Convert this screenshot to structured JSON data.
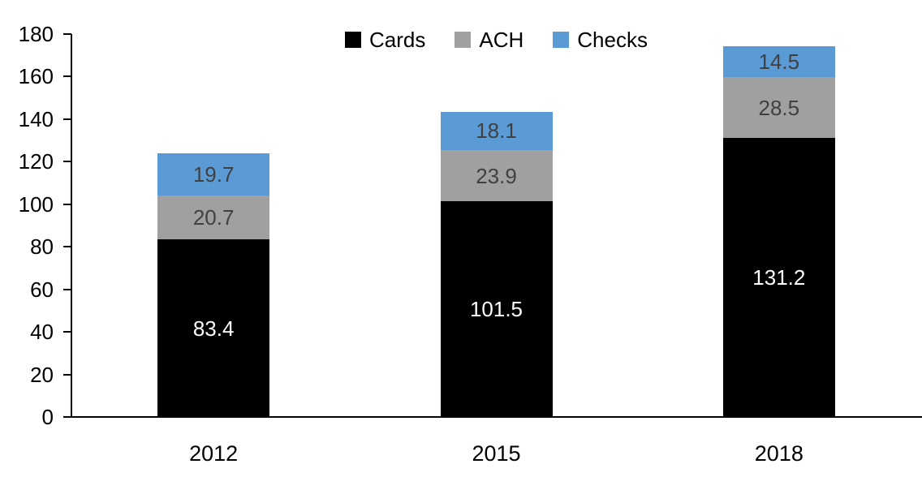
{
  "chart_data": {
    "type": "bar",
    "stacked": true,
    "title": "",
    "xlabel": "",
    "ylabel": "",
    "categories": [
      "2012",
      "2015",
      "2018"
    ],
    "series": [
      {
        "name": "Cards",
        "color": "#000000",
        "label_color": "#ffffff",
        "values": [
          83.4,
          101.5,
          131.2
        ]
      },
      {
        "name": "ACH",
        "color": "#a0a0a0",
        "label_color": "#404040",
        "values": [
          20.7,
          23.9,
          28.5
        ]
      },
      {
        "name": "Checks",
        "color": "#5b9bd5",
        "label_color": "#404040",
        "values": [
          19.7,
          18.1,
          14.5
        ]
      }
    ],
    "totals": [
      123.8,
      143.5,
      174.2
    ],
    "ylim": [
      0,
      180
    ],
    "yticks": [
      0,
      20,
      40,
      60,
      80,
      100,
      120,
      140,
      160,
      180
    ],
    "grid": false,
    "legend_position": "top-center",
    "legend_order": [
      "Cards",
      "ACH",
      "Checks"
    ],
    "axis_color": "#000000",
    "tick_label_color": "#000000"
  }
}
